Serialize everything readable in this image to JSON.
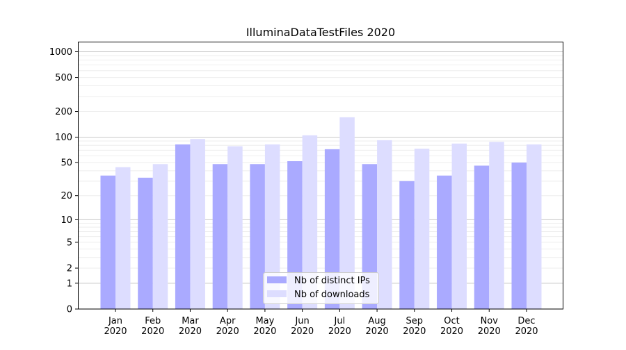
{
  "chart_data": {
    "type": "bar",
    "title": "IlluminaDataTestFiles 2020",
    "xlabel": "",
    "ylabel": "",
    "yscale": "log(1+x)",
    "ylim": [
      0,
      1300
    ],
    "yticks": [
      0,
      1,
      2,
      5,
      10,
      20,
      50,
      100,
      200,
      500,
      1000
    ],
    "grid": true,
    "legend_position": "bottom-center",
    "categories": [
      "Jan\n2020",
      "Feb\n2020",
      "Mar\n2020",
      "Apr\n2020",
      "May\n2020",
      "Jun\n2020",
      "Jul\n2020",
      "Aug\n2020",
      "Sep\n2020",
      "Oct\n2020",
      "Nov\n2020",
      "Dec\n2020"
    ],
    "series": [
      {
        "name": "Nb of distinct IPs",
        "color": "#aaaaff",
        "values": [
          35,
          33,
          82,
          48,
          48,
          52,
          72,
          48,
          30,
          35,
          46,
          50
        ]
      },
      {
        "name": "Nb of downloads",
        "color": "#ddddff",
        "values": [
          44,
          48,
          95,
          78,
          82,
          105,
          171,
          92,
          73,
          84,
          88,
          82
        ]
      }
    ]
  }
}
